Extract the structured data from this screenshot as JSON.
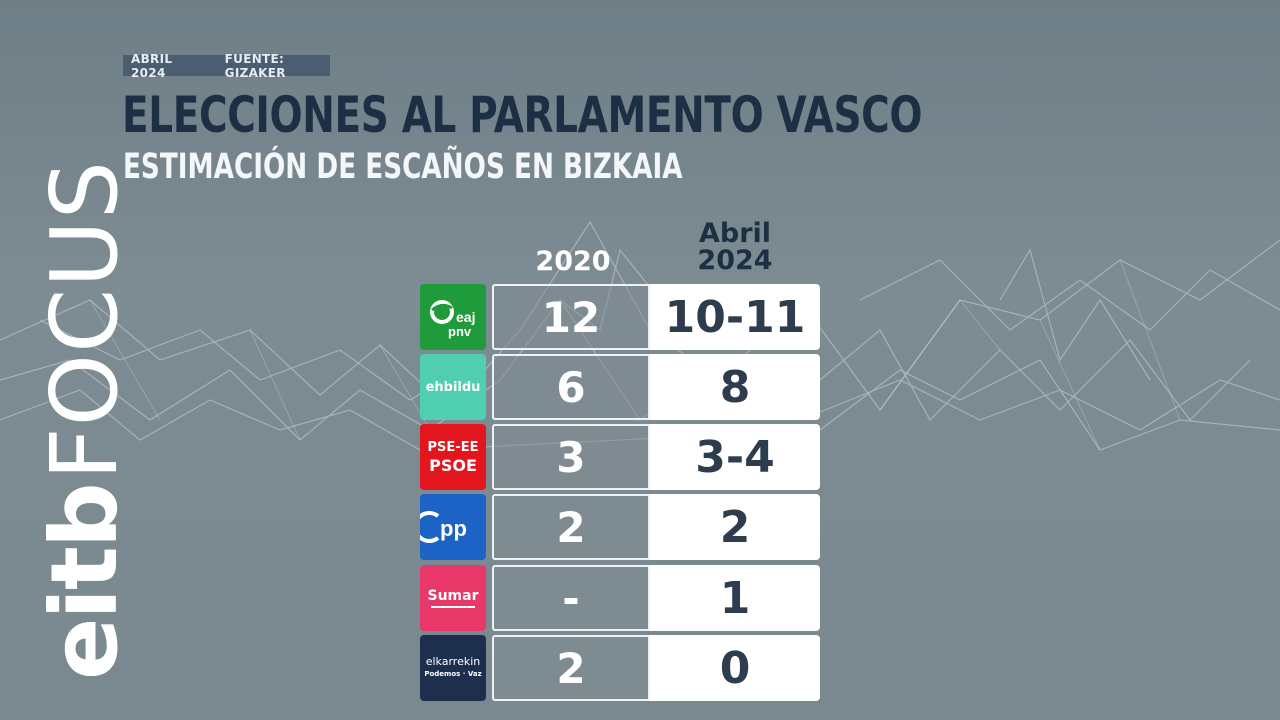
{
  "header": {
    "date_label": "ABRIL 2024",
    "source_label": "FUENTE: GIZAKER",
    "title": "ELECCIONES AL PARLAMENTO VASCO",
    "subtitle": "ESTIMACIÓN DE ESCAÑOS EN BIZKAIA"
  },
  "brand": {
    "logo_eitb": "eitb",
    "logo_focus": "FOCUS"
  },
  "columns": {
    "col_2020": "2020",
    "col_2024_line1": "Abril",
    "col_2024_line2": "2024"
  },
  "parties": [
    {
      "logo_text_1": "eaj",
      "logo_text_2": "pnv",
      "color": "#1f9b3c",
      "seats_2020": "12",
      "seats_2024": "10-11"
    },
    {
      "logo_text_1": "ehbildu",
      "color": "#4fcfb0",
      "seats_2020": "6",
      "seats_2024": "8"
    },
    {
      "logo_text_1": "PSE-EE",
      "logo_text_2": "PSOE",
      "color": "#e3161f",
      "seats_2020": "3",
      "seats_2024": "3-4"
    },
    {
      "logo_text_1": "pp",
      "color": "#1d63c6",
      "seats_2020": "2",
      "seats_2024": "2"
    },
    {
      "logo_text_1": "Sumar",
      "color": "#e8386a",
      "seats_2020": "-",
      "seats_2024": "1"
    },
    {
      "logo_text_1": "elkarrekin",
      "logo_text_2": "Podemos · Vaz",
      "color": "#1e2f4d",
      "seats_2020": "2",
      "seats_2024": "0"
    }
  ],
  "colors": {
    "title": "#1d2f44",
    "background": "#7a8990",
    "meta_bar": "#4b5d70"
  }
}
